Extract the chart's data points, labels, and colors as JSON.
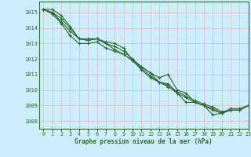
{
  "title": "Graphe pression niveau de la mer (hPa)",
  "background_color": "#cceeff",
  "grid_color": "#aaddcc",
  "line_color": "#2d6a2d",
  "xlim": [
    -0.5,
    23
  ],
  "ylim": [
    1007.5,
    1015.7
  ],
  "yticks": [
    1008,
    1009,
    1010,
    1011,
    1012,
    1013,
    1014,
    1015
  ],
  "xticks": [
    0,
    1,
    2,
    3,
    4,
    5,
    6,
    7,
    8,
    9,
    10,
    11,
    12,
    13,
    14,
    15,
    16,
    17,
    18,
    19,
    20,
    21,
    22,
    23
  ],
  "series": [
    [
      1015.2,
      1015.2,
      1014.8,
      1014.1,
      1013.3,
      1013.3,
      1013.3,
      1013.1,
      1013.0,
      1012.7,
      1011.9,
      1011.5,
      1011.1,
      1010.8,
      1011.0,
      1010.0,
      1009.8,
      1009.2,
      1009.0,
      1008.4,
      1008.5,
      1008.8,
      1008.8,
      1009.0
    ],
    [
      1015.2,
      1015.0,
      1014.6,
      1014.0,
      1013.3,
      1013.2,
      1013.3,
      1013.0,
      1012.8,
      1012.5,
      1012.0,
      1011.5,
      1011.1,
      1010.5,
      1010.4,
      1009.8,
      1009.2,
      1009.2,
      1009.0,
      1008.7,
      1008.5,
      1008.7,
      1008.7,
      1009.0
    ],
    [
      1015.2,
      1015.0,
      1014.4,
      1013.8,
      1013.3,
      1013.2,
      1013.3,
      1013.0,
      1012.6,
      1012.3,
      1011.9,
      1011.3,
      1010.8,
      1010.5,
      1010.2,
      1009.8,
      1009.5,
      1009.2,
      1009.0,
      1008.8,
      1008.5,
      1008.7,
      1008.7,
      1009.0
    ],
    [
      1015.2,
      1014.9,
      1014.3,
      1013.5,
      1013.0,
      1013.0,
      1013.1,
      1012.7,
      1012.5,
      1012.3,
      1011.9,
      1011.4,
      1010.9,
      1010.5,
      1010.3,
      1009.9,
      1009.6,
      1009.3,
      1009.1,
      1008.9,
      1008.6,
      1008.7,
      1008.7,
      1009.0
    ]
  ]
}
